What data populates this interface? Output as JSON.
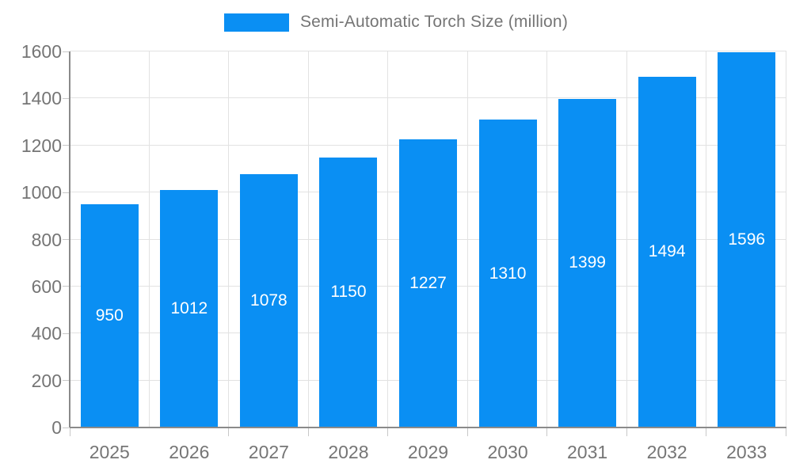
{
  "chart_data": {
    "type": "bar",
    "title": "",
    "legend_position": "top-center",
    "categories": [
      "2025",
      "2026",
      "2027",
      "2028",
      "2029",
      "2030",
      "2031",
      "2032",
      "2033"
    ],
    "series": [
      {
        "name": "Semi-Automatic Torch Size (million)",
        "values": [
          950,
          1012,
          1078,
          1150,
          1227,
          1310,
          1399,
          1494,
          1596
        ],
        "color": "#0a8ff3"
      }
    ],
    "value_labels": [
      "950",
      "1012",
      "1078",
      "1150",
      "1227",
      "1310",
      "1399",
      "1494",
      "1596"
    ],
    "xlabel": "",
    "ylabel": "",
    "ylim": [
      0,
      1600
    ],
    "yticks": [
      0,
      200,
      400,
      600,
      800,
      1000,
      1200,
      1400,
      1600
    ],
    "grid": true,
    "colors": {
      "bar": "#0a8ff3",
      "value_label_text": "#ffffff",
      "axis_text": "#757575",
      "legend_text": "#757575",
      "grid_line": "#e2e2e2",
      "axis_line": "#8a8a8a",
      "background": "#ffffff"
    }
  }
}
